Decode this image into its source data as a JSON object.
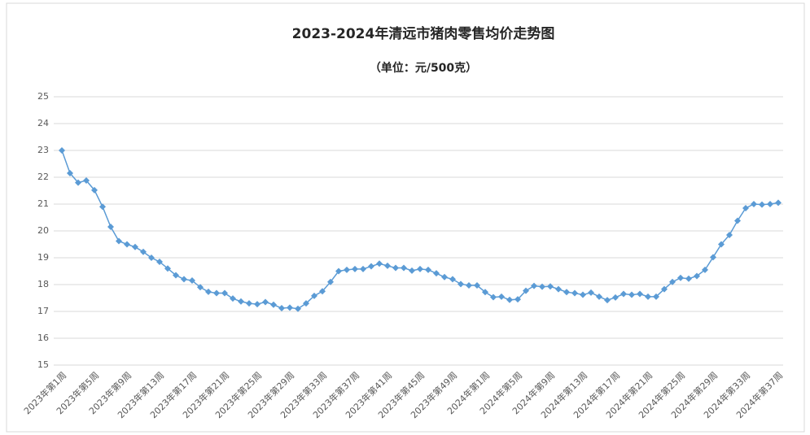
{
  "chart_data": {
    "type": "line",
    "title": "2023-2024年清远市猪肉零售均价走势图",
    "subtitle": "（单位：元/500克）",
    "categories": [
      "2023年第1周",
      null,
      null,
      null,
      "2023年第5周",
      null,
      null,
      null,
      "2023年第9周",
      null,
      null,
      null,
      "2023年第13周",
      null,
      null,
      null,
      "2023年第17周",
      null,
      null,
      null,
      "2023年第21周",
      null,
      null,
      null,
      "2023年第25周",
      null,
      null,
      null,
      "2023年第29周",
      null,
      null,
      null,
      "2023年第33周",
      null,
      null,
      null,
      "2023年第37周",
      null,
      null,
      null,
      "2023年第41周",
      null,
      null,
      null,
      "2023年第45周",
      null,
      null,
      null,
      "2023年第49周",
      null,
      null,
      null,
      "2024年第1周",
      null,
      null,
      null,
      "2024年第5周",
      null,
      null,
      null,
      "2024年第9周",
      null,
      null,
      null,
      "2024年第13周",
      null,
      null,
      null,
      "2024年第17周",
      null,
      null,
      null,
      "2024年第21周",
      null,
      null,
      null,
      "2024年第25周",
      null,
      null,
      null,
      "2024年第29周",
      null,
      null,
      null,
      "2024年第33周",
      null,
      null,
      null,
      "2024年第37周"
    ],
    "series": [
      {
        "name": "猪肉零售均价",
        "color": "#5b9bd5",
        "values": [
          23.0,
          22.15,
          21.8,
          21.88,
          21.52,
          20.9,
          20.15,
          19.62,
          19.5,
          19.4,
          19.22,
          19.0,
          18.85,
          18.6,
          18.35,
          18.2,
          18.15,
          17.9,
          17.73,
          17.68,
          17.68,
          17.48,
          17.37,
          17.3,
          17.27,
          17.35,
          17.25,
          17.12,
          17.14,
          17.1,
          17.3,
          17.58,
          17.75,
          18.1,
          18.5,
          18.55,
          18.58,
          18.58,
          18.68,
          18.78,
          18.7,
          18.62,
          18.62,
          18.52,
          18.58,
          18.55,
          18.42,
          18.28,
          18.2,
          18.02,
          17.97,
          17.97,
          17.72,
          17.53,
          17.55,
          17.43,
          17.45,
          17.77,
          17.95,
          17.92,
          17.93,
          17.83,
          17.72,
          17.68,
          17.62,
          17.7,
          17.55,
          17.42,
          17.52,
          17.65,
          17.62,
          17.65,
          17.55,
          17.55,
          17.83,
          18.1,
          18.25,
          18.22,
          18.32,
          18.55,
          19.02,
          19.5,
          19.85,
          20.38,
          20.85,
          21.0,
          20.98,
          21.0,
          21.05
        ]
      }
    ],
    "ylim": [
      15,
      25
    ],
    "yticks": [
      15,
      16,
      17,
      18,
      19,
      20,
      21,
      22,
      23,
      24,
      25
    ],
    "grid": true
  }
}
